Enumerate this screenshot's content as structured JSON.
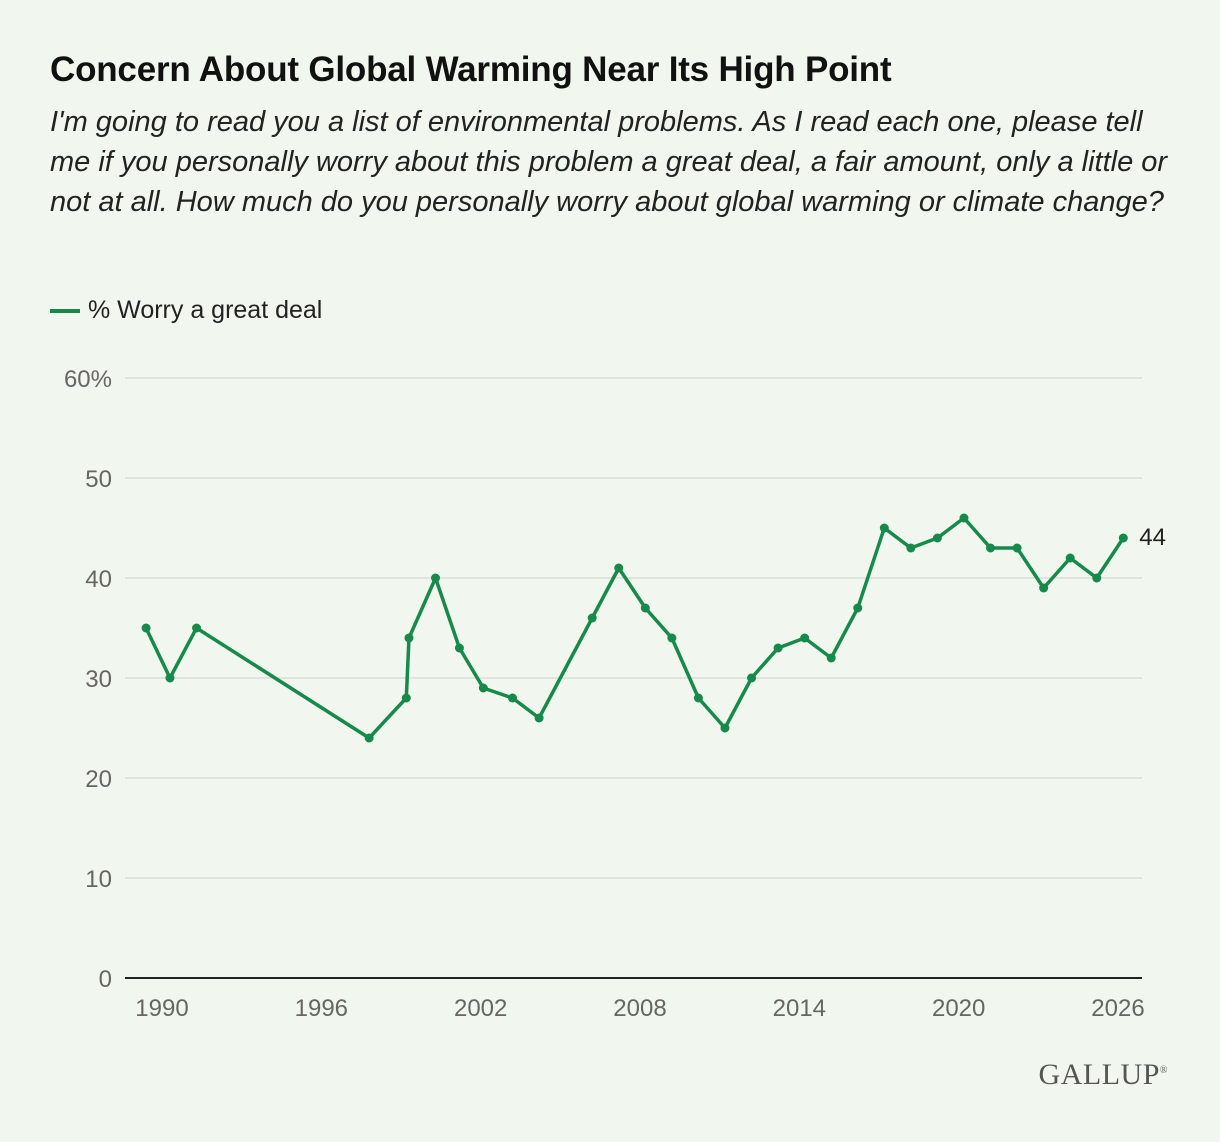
{
  "title": "Concern About Global Warming Near Its High Point",
  "subtitle": "I'm going to read you a list of environmental problems. As I read each one, please tell me if you personally worry about this problem a great deal, a fair amount, only a little or not at all. How much do you personally worry about global warming or climate change?",
  "logo": "GALLUP",
  "colors": {
    "line": "#168a4b",
    "grid": "#d9ded6",
    "axis_text": "#666666"
  },
  "chart_data": {
    "type": "line",
    "title": "Concern About Global Warming Near Its High Point",
    "xlabel": "",
    "ylabel": "",
    "ylim": [
      0,
      60
    ],
    "xlim": [
      1989,
      2026.5
    ],
    "yticks": [
      0,
      10,
      20,
      30,
      40,
      50,
      60
    ],
    "ytick_labels": [
      "0",
      "10",
      "20",
      "30",
      "40",
      "50",
      "60%"
    ],
    "xticks": [
      1990,
      1996,
      2002,
      2008,
      2014,
      2020,
      2026
    ],
    "xtick_labels": [
      "1990",
      "1996",
      "2002",
      "2008",
      "2014",
      "2020",
      "2026"
    ],
    "grid": true,
    "legend": "top-left",
    "series": [
      {
        "name": "% Worry a great deal",
        "x": [
          1989.4,
          1990.3,
          1991.3,
          1997.8,
          1999.2,
          1999.3,
          2000.3,
          2001.2,
          2002.1,
          2003.2,
          2004.2,
          2006.2,
          2007.2,
          2008.2,
          2009.2,
          2010.2,
          2011.2,
          2012.2,
          2013.2,
          2014.2,
          2015.2,
          2016.2,
          2017.2,
          2018.2,
          2019.2,
          2020.2,
          2021.2,
          2022.2,
          2023.2,
          2024.2,
          2025.2,
          2026.2
        ],
        "values": [
          35,
          30,
          35,
          24,
          28,
          34,
          40,
          33,
          29,
          28,
          26,
          36,
          41,
          37,
          34,
          28,
          25,
          30,
          33,
          34,
          32,
          37,
          45,
          43,
          44,
          46,
          43,
          43,
          39,
          42,
          40,
          44
        ]
      }
    ],
    "annotations": [
      {
        "text": "44",
        "label_of": "last point"
      }
    ]
  }
}
